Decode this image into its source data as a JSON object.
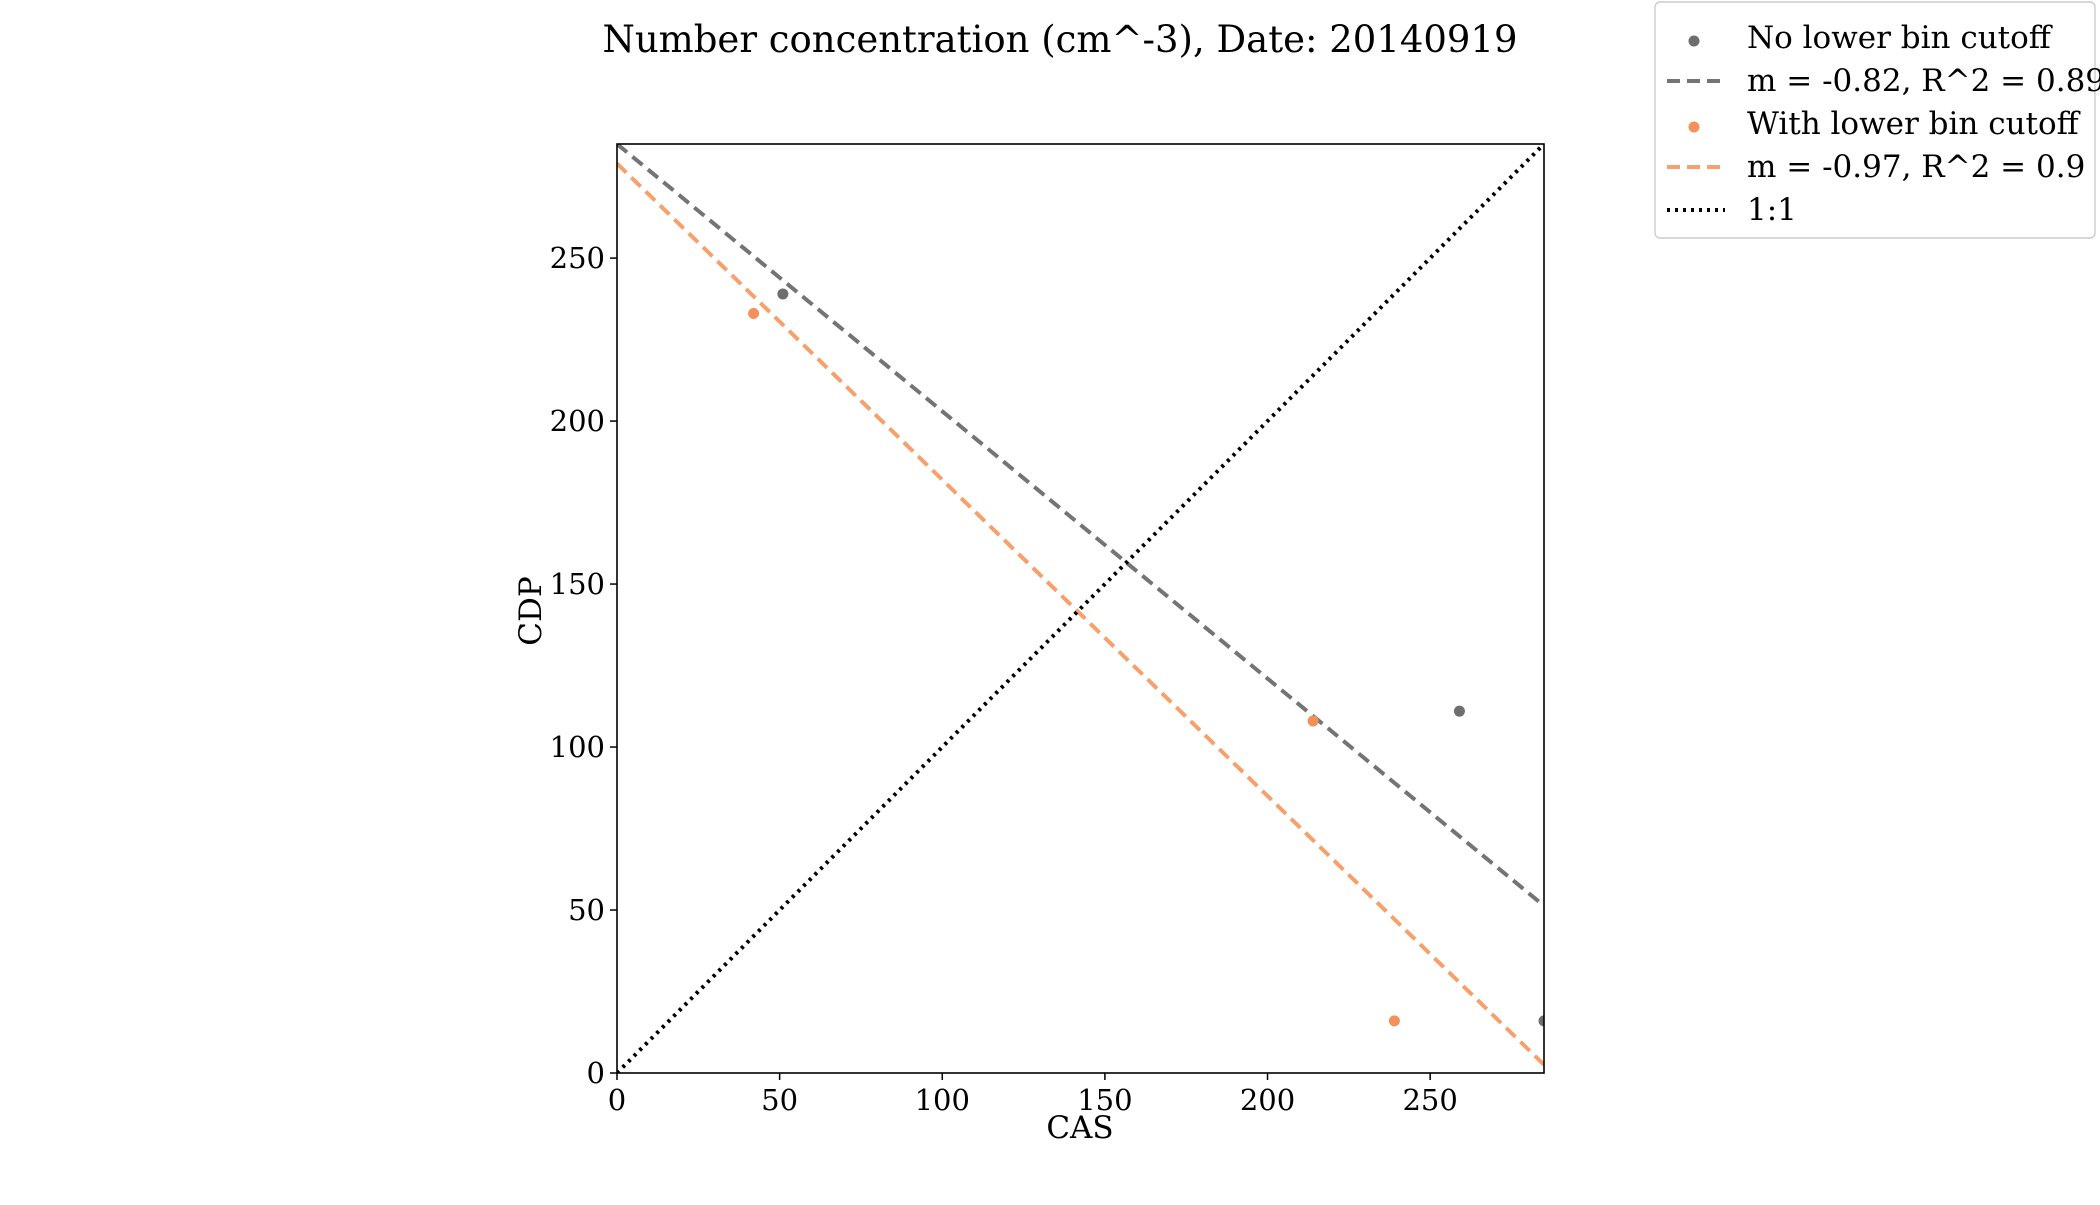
{
  "chart_data": {
    "type": "scatter",
    "title": "Number concentration (cm^-3), Date: 20140919",
    "xlabel": "CAS",
    "ylabel": "CDP",
    "xlim": [
      0,
      285
    ],
    "ylim": [
      0,
      285
    ],
    "xticks": [
      0,
      50,
      100,
      150,
      200,
      250
    ],
    "yticks": [
      0,
      50,
      100,
      150,
      200,
      250
    ],
    "grid": false,
    "legend_position": "outside-top-right",
    "series": [
      {
        "name": "No lower bin cutoff",
        "kind": "scatter",
        "color": "#6e6e6e",
        "points": [
          [
            51,
            239
          ],
          [
            259,
            111
          ],
          [
            285,
            16
          ]
        ]
      },
      {
        "name": "m = -0.82, R^2 = 0.89",
        "kind": "line",
        "style": "dashed",
        "color": "#747474",
        "slope": -0.82,
        "intercept": 285
      },
      {
        "name": "With lower bin cutoff",
        "kind": "scatter",
        "color": "#f4915a",
        "points": [
          [
            42,
            233
          ],
          [
            214,
            108
          ],
          [
            239,
            16
          ]
        ]
      },
      {
        "name": "m = -0.97, R^2 = 0.9",
        "kind": "line",
        "style": "dashed",
        "color": "#f7a06c",
        "slope": -0.97,
        "intercept": 279
      },
      {
        "name": "1:1",
        "kind": "line",
        "style": "dotted",
        "color": "#000000",
        "slope": 1,
        "intercept": 0
      }
    ]
  }
}
